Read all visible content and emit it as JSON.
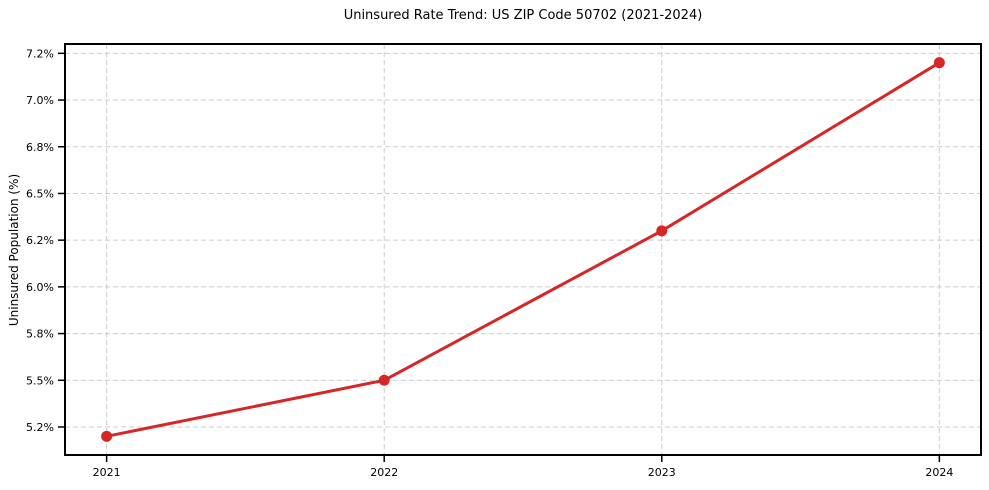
{
  "chart_data": {
    "type": "line",
    "title": "Uninsured Rate Trend: US ZIP Code 50702 (2021-2024)",
    "xlabel": "",
    "ylabel": "Uninsured Population (%)",
    "categories": [
      "2021",
      "2022",
      "2023",
      "2024"
    ],
    "x_values": [
      2021,
      2022,
      2023,
      2024
    ],
    "values": [
      5.2,
      5.5,
      6.3,
      7.2
    ],
    "value_unit": "%",
    "xlim": [
      2020.85,
      2024.15
    ],
    "ylim": [
      5.1,
      7.3
    ],
    "y_ticks": [
      {
        "value": 5.25,
        "label": "5.2%"
      },
      {
        "value": 5.5,
        "label": "5.5%"
      },
      {
        "value": 5.75,
        "label": "5.8%"
      },
      {
        "value": 6.0,
        "label": "6.0%"
      },
      {
        "value": 6.25,
        "label": "6.2%"
      },
      {
        "value": 6.5,
        "label": "6.5%"
      },
      {
        "value": 6.75,
        "label": "6.8%"
      },
      {
        "value": 7.0,
        "label": "7.0%"
      },
      {
        "value": 7.25,
        "label": "7.2%"
      }
    ],
    "x_ticks": [
      {
        "value": 2021,
        "label": "2021"
      },
      {
        "value": 2022,
        "label": "2022"
      },
      {
        "value": 2023,
        "label": "2023"
      },
      {
        "value": 2024,
        "label": "2024"
      }
    ],
    "grid": true,
    "grid_style": "dashed",
    "legend": false,
    "colors": {
      "line": "#d62728",
      "marker": "#d62728",
      "grid": "#cccccc",
      "spine": "#000000",
      "text": "#000000",
      "background": "#ffffff"
    }
  }
}
